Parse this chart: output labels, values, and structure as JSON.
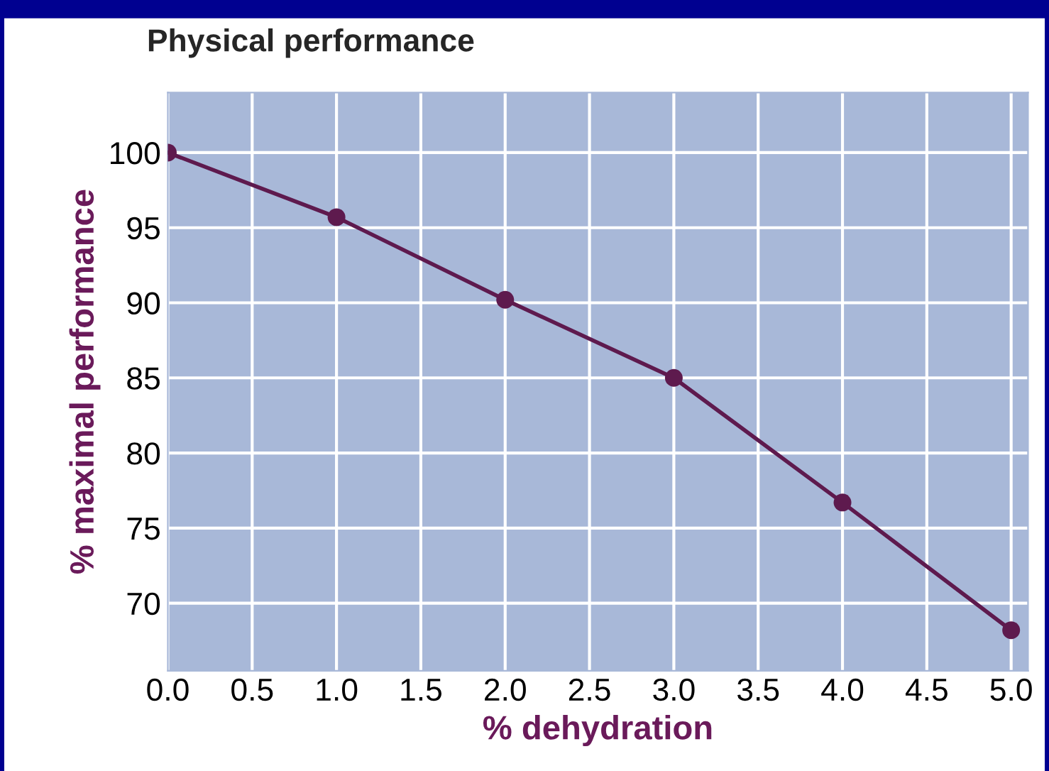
{
  "chart_data": {
    "type": "line",
    "title": "Physical performance",
    "xlabel": "% dehydration",
    "ylabel": "% maximal performance",
    "x": [
      0.0,
      1.0,
      2.0,
      3.0,
      4.0,
      5.0
    ],
    "series": [
      {
        "color": "#5e1a4e",
        "values": [
          100,
          95.7,
          90.2,
          85.0,
          76.7,
          68.2
        ]
      }
    ],
    "xlim": [
      0,
      5.1
    ],
    "xticks": [
      {
        "value": 0,
        "label": "0.0"
      },
      0.5,
      {
        "value": 1,
        "label": "1.0"
      },
      1.5,
      {
        "value": 2,
        "label": "2.0"
      },
      2.5,
      {
        "value": 3,
        "label": "3.0"
      },
      3.5,
      {
        "value": 4,
        "label": "4.0"
      },
      4.5,
      {
        "value": 5,
        "label": "5.0"
      }
    ],
    "ylim": [
      65.5,
      104
    ],
    "yticks": [
      70,
      75,
      80,
      85,
      90,
      95,
      100
    ],
    "grid": true,
    "marker": "circle",
    "line_style": "solid"
  }
}
